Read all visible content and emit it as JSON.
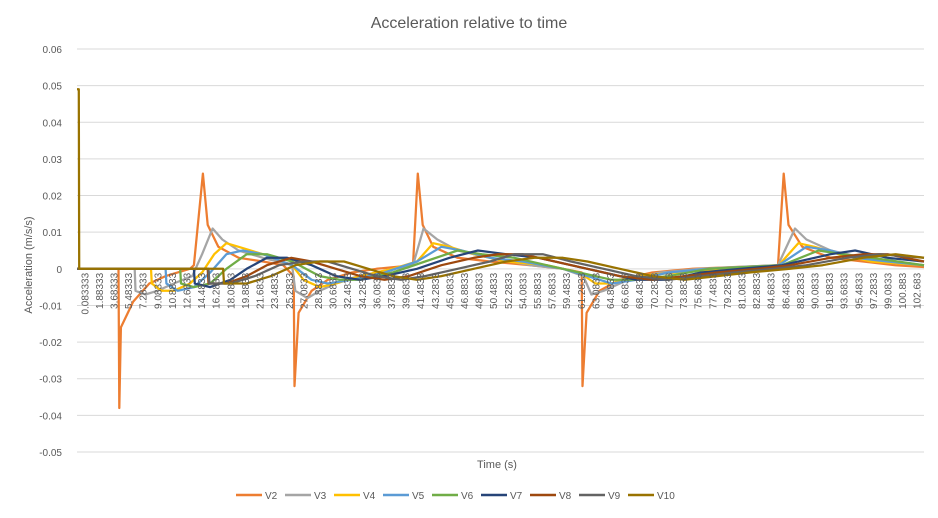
{
  "chart_data": {
    "type": "line",
    "title": "Acceleration relative to time",
    "xlabel": "Time (s)",
    "ylabel": "Acceleration (m/s/s)",
    "ylim": [
      -0.05,
      0.06
    ],
    "yticks": [
      0.06,
      0.05,
      0.04,
      0.03,
      0.02,
      0.01,
      0,
      -0.01,
      -0.02,
      -0.03,
      -0.04,
      -0.05
    ],
    "x_tick_labels": [
      "0.083333",
      "1.88333",
      "3.68333",
      "5.48333",
      "7.28333",
      "9.08333",
      "10.8833",
      "12.6833",
      "14.4833",
      "16.2833",
      "18.0833",
      "19.8833",
      "21.6833",
      "23.4833",
      "25.2833",
      "27.0833",
      "28.8833",
      "30.6833",
      "32.4833",
      "34.2833",
      "36.0833",
      "37.8833",
      "39.6833",
      "41.4833",
      "43.2833",
      "45.0833",
      "46.8833",
      "48.6833",
      "50.4833",
      "52.2833",
      "54.0833",
      "55.8833",
      "57.6833",
      "59.4833",
      "61.2833",
      "63.0833",
      "64.8833",
      "66.6833",
      "68.4833",
      "70.2833",
      "72.0833",
      "73.8833",
      "75.6833",
      "77.4833",
      "79.2833",
      "81.0833",
      "82.8833",
      "84.6833",
      "86.4833",
      "88.2833",
      "90.0833",
      "91.8833",
      "93.6833",
      "95.4833",
      "97.2833",
      "99.0833",
      "100.883",
      "102.683"
    ],
    "x_range": [
      0.083333,
      104.5
    ],
    "grid": true,
    "legend_position": "bottom",
    "series": [
      {
        "name": "V2",
        "color": "#ED7D31",
        "points": [
          [
            0.083,
            0
          ],
          [
            5.2,
            0
          ],
          [
            5.3,
            -0.038
          ],
          [
            5.5,
            -0.016
          ],
          [
            7,
            -0.009
          ],
          [
            9,
            -0.004
          ],
          [
            11,
            -0.002
          ],
          [
            14,
            0
          ],
          [
            14.5,
            0.001
          ],
          [
            15.6,
            0.026
          ],
          [
            16.2,
            0.012
          ],
          [
            17.5,
            0.006
          ],
          [
            20,
            0.003
          ],
          [
            23,
            0.002
          ],
          [
            25.5,
            0.001
          ],
          [
            26.8,
            -0.002
          ],
          [
            26.9,
            -0.032
          ],
          [
            27.4,
            -0.012
          ],
          [
            29,
            -0.006
          ],
          [
            31,
            -0.003
          ],
          [
            34,
            -0.001
          ],
          [
            37,
            0
          ],
          [
            41.5,
            0.001
          ],
          [
            42.1,
            0.026
          ],
          [
            42.7,
            0.012
          ],
          [
            44,
            0.006
          ],
          [
            47,
            0.003
          ],
          [
            51,
            0.002
          ],
          [
            56,
            0.001
          ],
          [
            60,
            0
          ],
          [
            62.3,
            -0.001
          ],
          [
            62.4,
            -0.032
          ],
          [
            62.9,
            -0.012
          ],
          [
            64.5,
            -0.006
          ],
          [
            67,
            -0.003
          ],
          [
            71,
            -0.001
          ],
          [
            76,
            0
          ],
          [
            86.5,
            0.001
          ],
          [
            87.2,
            0.026
          ],
          [
            87.8,
            0.012
          ],
          [
            89.5,
            0.006
          ],
          [
            93,
            0.003
          ],
          [
            97,
            0.002
          ],
          [
            101,
            0.001
          ],
          [
            104.5,
            0.0005
          ]
        ]
      },
      {
        "name": "V3",
        "color": "#A5A5A5",
        "points": [
          [
            0.083,
            0
          ],
          [
            7.2,
            0
          ],
          [
            7.3,
            -0.006
          ],
          [
            8.5,
            -0.007
          ],
          [
            10,
            -0.006
          ],
          [
            12,
            -0.004
          ],
          [
            14.3,
            -0.002
          ],
          [
            15.5,
            0.004
          ],
          [
            16.8,
            0.011
          ],
          [
            18,
            0.008
          ],
          [
            20,
            0.005
          ],
          [
            23,
            0.003
          ],
          [
            26.6,
            0.001
          ],
          [
            27,
            -0.006
          ],
          [
            28.5,
            -0.008
          ],
          [
            30,
            -0.006
          ],
          [
            33,
            -0.003
          ],
          [
            37,
            -0.001
          ],
          [
            41.5,
            0.001
          ],
          [
            42.8,
            0.011
          ],
          [
            44.5,
            0.008
          ],
          [
            47,
            0.005
          ],
          [
            51,
            0.003
          ],
          [
            56,
            0.001
          ],
          [
            60,
            0
          ],
          [
            62.5,
            -0.002
          ],
          [
            63.5,
            -0.007
          ],
          [
            65,
            -0.006
          ],
          [
            68,
            -0.003
          ],
          [
            72,
            -0.001
          ],
          [
            77,
            0
          ],
          [
            86.5,
            0.001
          ],
          [
            88.6,
            0.011
          ],
          [
            90,
            0.008
          ],
          [
            93,
            0.005
          ],
          [
            97,
            0.003
          ],
          [
            101,
            0.002
          ],
          [
            104.5,
            0.001
          ]
        ]
      },
      {
        "name": "V4",
        "color": "#FFC000",
        "points": [
          [
            0.083,
            0
          ],
          [
            9.2,
            0
          ],
          [
            9.3,
            -0.004
          ],
          [
            10.5,
            -0.006
          ],
          [
            12,
            -0.006
          ],
          [
            14,
            -0.004
          ],
          [
            15.5,
            -0.001
          ],
          [
            17,
            0.004
          ],
          [
            18.5,
            0.007
          ],
          [
            20,
            0.006
          ],
          [
            23,
            0.004
          ],
          [
            26.6,
            0.001
          ],
          [
            28,
            -0.003
          ],
          [
            30,
            -0.005
          ],
          [
            32,
            -0.004
          ],
          [
            35,
            -0.002
          ],
          [
            39,
            0
          ],
          [
            42,
            0.002
          ],
          [
            44,
            0.007
          ],
          [
            46,
            0.006
          ],
          [
            49,
            0.004
          ],
          [
            53,
            0.002
          ],
          [
            58,
            0.001
          ],
          [
            62,
            -0.001
          ],
          [
            64,
            -0.004
          ],
          [
            66,
            -0.004
          ],
          [
            69,
            -0.002
          ],
          [
            74,
            -0.001
          ],
          [
            86.6,
            0.001
          ],
          [
            89,
            0.007
          ],
          [
            91,
            0.006
          ],
          [
            94,
            0.004
          ],
          [
            98,
            0.002
          ],
          [
            104.5,
            0.001
          ]
        ]
      },
      {
        "name": "V5",
        "color": "#5B9BD5",
        "points": [
          [
            0.083,
            0
          ],
          [
            11,
            0
          ],
          [
            11.1,
            -0.004
          ],
          [
            12.5,
            -0.006
          ],
          [
            14.5,
            -0.005
          ],
          [
            16.5,
            -0.001
          ],
          [
            18.5,
            0.004
          ],
          [
            20.5,
            0.005
          ],
          [
            23,
            0.004
          ],
          [
            26.6,
            0.001
          ],
          [
            29,
            -0.003
          ],
          [
            31,
            -0.004
          ],
          [
            34,
            -0.003
          ],
          [
            38,
            -0.001
          ],
          [
            42,
            0.002
          ],
          [
            45,
            0.006
          ],
          [
            47.5,
            0.005
          ],
          [
            51,
            0.003
          ],
          [
            55,
            0.002
          ],
          [
            60,
            0
          ],
          [
            63,
            -0.002
          ],
          [
            66,
            -0.004
          ],
          [
            69,
            -0.003
          ],
          [
            73,
            -0.001
          ],
          [
            78,
            0
          ],
          [
            86.6,
            0.001
          ],
          [
            90,
            0.006
          ],
          [
            93,
            0.005
          ],
          [
            96,
            0.003
          ],
          [
            100,
            0.002
          ],
          [
            104.5,
            0.001
          ]
        ]
      },
      {
        "name": "V6",
        "color": "#70AD47",
        "points": [
          [
            0.083,
            0
          ],
          [
            12.8,
            0
          ],
          [
            12.9,
            -0.004
          ],
          [
            14.5,
            -0.005
          ],
          [
            16.5,
            -0.004
          ],
          [
            18.5,
            0
          ],
          [
            21,
            0.004
          ],
          [
            23.5,
            0.004
          ],
          [
            26.6,
            0.002
          ],
          [
            30,
            -0.002
          ],
          [
            32.5,
            -0.003
          ],
          [
            35,
            -0.003
          ],
          [
            39,
            -0.001
          ],
          [
            43,
            0.002
          ],
          [
            47,
            0.005
          ],
          [
            50,
            0.004
          ],
          [
            54,
            0.003
          ],
          [
            58,
            0.001
          ],
          [
            62,
            -0.001
          ],
          [
            66,
            -0.003
          ],
          [
            69,
            -0.003
          ],
          [
            73,
            -0.002
          ],
          [
            78,
            0
          ],
          [
            87,
            0.001
          ],
          [
            91.5,
            0.005
          ],
          [
            94.5,
            0.004
          ],
          [
            98,
            0.003
          ],
          [
            104.5,
            0.001
          ]
        ]
      },
      {
        "name": "V7",
        "color": "#264478",
        "points": [
          [
            0.083,
            0
          ],
          [
            14.5,
            0
          ],
          [
            14.6,
            -0.004
          ],
          [
            16.5,
            -0.005
          ],
          [
            19,
            -0.003
          ],
          [
            21,
            0
          ],
          [
            23.5,
            0.003
          ],
          [
            26,
            0.003
          ],
          [
            29,
            0.001
          ],
          [
            32,
            -0.002
          ],
          [
            35,
            -0.003
          ],
          [
            38,
            -0.002
          ],
          [
            42,
            0
          ],
          [
            46,
            0.003
          ],
          [
            49.5,
            0.005
          ],
          [
            53,
            0.004
          ],
          [
            57,
            0.003
          ],
          [
            61,
            0.001
          ],
          [
            65,
            -0.001
          ],
          [
            69,
            -0.003
          ],
          [
            73,
            -0.003
          ],
          [
            77,
            -0.001
          ],
          [
            82,
            0
          ],
          [
            87,
            0.001
          ],
          [
            93,
            0.004
          ],
          [
            96,
            0.005
          ],
          [
            100,
            0.003
          ],
          [
            104.5,
            0.002
          ]
        ]
      },
      {
        "name": "V8",
        "color": "#9E480E",
        "points": [
          [
            0.083,
            0
          ],
          [
            16.2,
            0
          ],
          [
            16.3,
            -0.004
          ],
          [
            18.5,
            -0.004
          ],
          [
            21,
            -0.002
          ],
          [
            23.5,
            0.001
          ],
          [
            26.5,
            0.003
          ],
          [
            29,
            0.002
          ],
          [
            32,
            0
          ],
          [
            35,
            -0.002
          ],
          [
            38,
            -0.003
          ],
          [
            41,
            -0.002
          ],
          [
            45,
            0.001
          ],
          [
            49,
            0.003
          ],
          [
            52,
            0.004
          ],
          [
            55,
            0.004
          ],
          [
            59,
            0.002
          ],
          [
            63,
            0
          ],
          [
            67,
            -0.002
          ],
          [
            71,
            -0.003
          ],
          [
            75,
            -0.002
          ],
          [
            79,
            -0.001
          ],
          [
            84,
            0
          ],
          [
            88,
            0.001
          ],
          [
            93,
            0.003
          ],
          [
            97,
            0.004
          ],
          [
            100,
            0.004
          ],
          [
            104.5,
            0.002
          ]
        ]
      },
      {
        "name": "V9",
        "color": "#636363",
        "points": [
          [
            0.083,
            0
          ],
          [
            16.3,
            0
          ],
          [
            16.4,
            -0.004
          ],
          [
            19,
            -0.004
          ],
          [
            22,
            -0.002
          ],
          [
            25,
            0.001
          ],
          [
            28,
            0.002
          ],
          [
            31,
            0.002
          ],
          [
            34,
            0
          ],
          [
            37,
            -0.002
          ],
          [
            40,
            -0.003
          ],
          [
            43,
            -0.002
          ],
          [
            47,
            0
          ],
          [
            51,
            0.002
          ],
          [
            54,
            0.004
          ],
          [
            57.5,
            0.004
          ],
          [
            61,
            0.002
          ],
          [
            65,
            0
          ],
          [
            69,
            -0.002
          ],
          [
            73,
            -0.003
          ],
          [
            77,
            -0.002
          ],
          [
            81,
            -0.001
          ],
          [
            86,
            0
          ],
          [
            90,
            0.001
          ],
          [
            95,
            0.003
          ],
          [
            99,
            0.004
          ],
          [
            104.5,
            0.003
          ]
        ]
      },
      {
        "name": "V10",
        "color": "#997300",
        "points": [
          [
            0.083,
            0.049
          ],
          [
            0.3,
            0.049
          ],
          [
            0.35,
            0
          ],
          [
            18.1,
            0
          ],
          [
            18.2,
            -0.004
          ],
          [
            21,
            -0.004
          ],
          [
            24,
            -0.002
          ],
          [
            27,
            0.001
          ],
          [
            30,
            0.002
          ],
          [
            33,
            0.002
          ],
          [
            36,
            0
          ],
          [
            39,
            -0.002
          ],
          [
            42,
            -0.003
          ],
          [
            45,
            -0.002
          ],
          [
            49,
            0
          ],
          [
            53,
            0.002
          ],
          [
            56.5,
            0.003
          ],
          [
            60,
            0.003
          ],
          [
            63,
            0.002
          ],
          [
            67,
            0
          ],
          [
            71,
            -0.002
          ],
          [
            75,
            -0.003
          ],
          [
            79,
            -0.002
          ],
          [
            83,
            -0.001
          ],
          [
            88,
            0
          ],
          [
            92,
            0.001
          ],
          [
            97,
            0.003
          ],
          [
            101,
            0.004
          ],
          [
            104.5,
            0.003
          ]
        ]
      }
    ]
  }
}
